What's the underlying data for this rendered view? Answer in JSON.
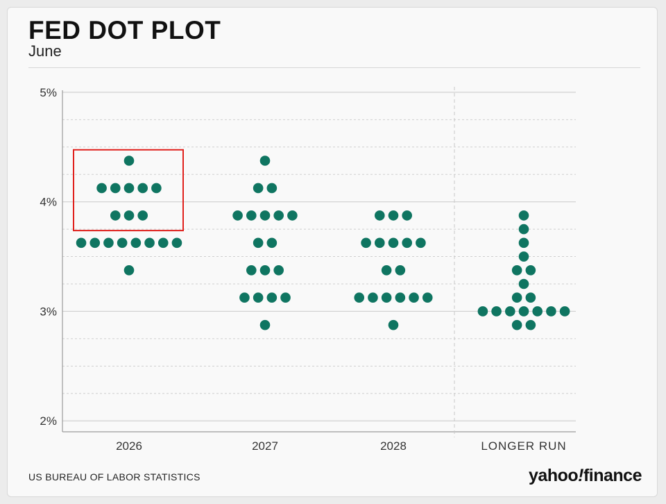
{
  "header": {
    "title": "FED DOT PLOT",
    "subtitle": "June"
  },
  "footer": {
    "source": "US BUREAU OF LABOR STATISTICS",
    "brand_left": "yahoo",
    "brand_bang": "!",
    "brand_right": "finance"
  },
  "colors": {
    "dot": "#0f7561",
    "highlight": "#e0201c",
    "grid": "#cfcfcf",
    "axis": "#9a9a9a"
  },
  "chart_data": {
    "type": "scatter",
    "title": "FED DOT PLOT",
    "subtitle": "June",
    "ylim": [
      1.9,
      5.05
    ],
    "yticks": [
      2,
      3,
      4,
      5
    ],
    "ytick_labels": [
      "2%",
      "3%",
      "4%",
      "5%"
    ],
    "minor_gridlines": [
      2.25,
      2.5,
      2.75,
      3.25,
      3.5,
      3.75,
      4.25,
      4.5,
      4.75
    ],
    "grid": true,
    "categories": [
      "2026",
      "2027",
      "2028",
      "LONGER RUN"
    ],
    "dots": [
      {
        "category": "2026",
        "levels": [
          {
            "rate": 4.375,
            "count": 1
          },
          {
            "rate": 4.125,
            "count": 5
          },
          {
            "rate": 3.875,
            "count": 3
          },
          {
            "rate": 3.625,
            "count": 8
          },
          {
            "rate": 3.375,
            "count": 1
          }
        ]
      },
      {
        "category": "2027",
        "levels": [
          {
            "rate": 4.375,
            "count": 1
          },
          {
            "rate": 4.125,
            "count": 2
          },
          {
            "rate": 3.875,
            "count": 5
          },
          {
            "rate": 3.625,
            "count": 2
          },
          {
            "rate": 3.375,
            "count": 3
          },
          {
            "rate": 3.125,
            "count": 4
          },
          {
            "rate": 2.875,
            "count": 1
          }
        ]
      },
      {
        "category": "2028",
        "levels": [
          {
            "rate": 3.875,
            "count": 3
          },
          {
            "rate": 3.625,
            "count": 5
          },
          {
            "rate": 3.375,
            "count": 2
          },
          {
            "rate": 3.125,
            "count": 6
          },
          {
            "rate": 2.875,
            "count": 1
          }
        ]
      },
      {
        "category": "LONGER RUN",
        "levels": [
          {
            "rate": 3.875,
            "count": 1
          },
          {
            "rate": 3.75,
            "count": 1
          },
          {
            "rate": 3.625,
            "count": 1
          },
          {
            "rate": 3.5,
            "count": 1
          },
          {
            "rate": 3.375,
            "count": 2
          },
          {
            "rate": 3.25,
            "count": 1
          },
          {
            "rate": 3.125,
            "count": 2
          },
          {
            "rate": 3.0,
            "count": 7
          },
          {
            "rate": 2.875,
            "count": 2
          }
        ]
      }
    ],
    "highlight": {
      "category": "2026",
      "rate_range": [
        3.75,
        4.5
      ]
    }
  }
}
